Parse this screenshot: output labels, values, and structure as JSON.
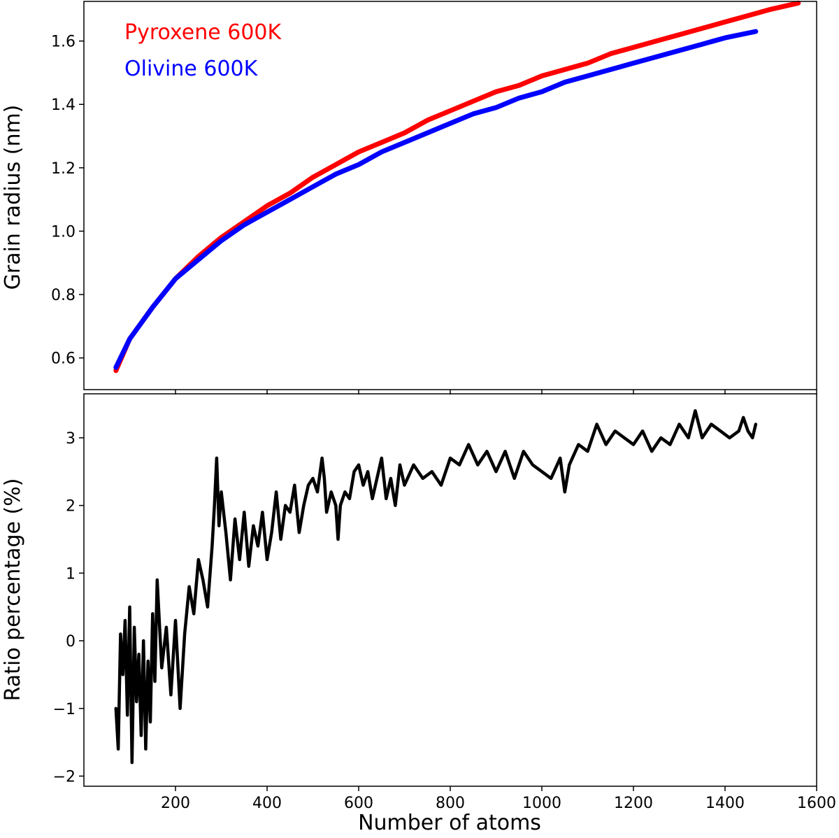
{
  "chart_data": [
    {
      "type": "line",
      "ylabel": "Grain radius (nm)",
      "xlabel": "",
      "xlim": [
        0,
        1600
      ],
      "ylim": [
        0.5,
        1.725
      ],
      "xticks": [
        200,
        400,
        600,
        800,
        1000,
        1200,
        1400,
        1600
      ],
      "yticks": [
        0.6,
        0.8,
        1.0,
        1.2,
        1.4,
        1.6
      ],
      "ytick_labels": [
        "0.6",
        "0.8",
        "1.0",
        "1.2",
        "1.4",
        "1.6"
      ],
      "show_xtick_labels": false,
      "legend": "top-left",
      "series": [
        {
          "name": "Pyroxene 600K",
          "color": "#ff0000",
          "x": [
            70,
            100,
            150,
            200,
            250,
            300,
            350,
            400,
            450,
            500,
            550,
            600,
            650,
            700,
            750,
            800,
            850,
            900,
            950,
            1000,
            1050,
            1100,
            1150,
            1200,
            1250,
            1300,
            1350,
            1400,
            1450,
            1500,
            1560
          ],
          "y": [
            0.56,
            0.66,
            0.76,
            0.85,
            0.92,
            0.98,
            1.03,
            1.08,
            1.12,
            1.17,
            1.21,
            1.25,
            1.28,
            1.31,
            1.35,
            1.38,
            1.41,
            1.44,
            1.46,
            1.49,
            1.51,
            1.53,
            1.56,
            1.58,
            1.6,
            1.62,
            1.64,
            1.66,
            1.68,
            1.7,
            1.72
          ]
        },
        {
          "name": "Olivine 600K",
          "color": "#0000ff",
          "x": [
            70,
            100,
            150,
            200,
            250,
            300,
            350,
            400,
            450,
            500,
            550,
            600,
            650,
            700,
            750,
            800,
            850,
            900,
            950,
            1000,
            1050,
            1100,
            1150,
            1200,
            1250,
            1300,
            1350,
            1400,
            1467
          ],
          "y": [
            0.57,
            0.66,
            0.76,
            0.85,
            0.91,
            0.97,
            1.02,
            1.06,
            1.1,
            1.14,
            1.18,
            1.21,
            1.25,
            1.28,
            1.31,
            1.34,
            1.37,
            1.39,
            1.42,
            1.44,
            1.47,
            1.49,
            1.51,
            1.53,
            1.55,
            1.57,
            1.59,
            1.61,
            1.63
          ]
        }
      ]
    },
    {
      "type": "line",
      "ylabel": "Ratio percentage (%)",
      "xlabel": "Number of atoms",
      "xlim": [
        0,
        1600
      ],
      "ylim": [
        -2.15,
        3.65
      ],
      "xticks": [
        200,
        400,
        600,
        800,
        1000,
        1200,
        1400,
        1600
      ],
      "xtick_labels": [
        "200",
        "400",
        "600",
        "800",
        "1000",
        "1200",
        "1400",
        "1600"
      ],
      "yticks": [
        -2,
        -1,
        0,
        1,
        2,
        3
      ],
      "ytick_labels": [
        "−2",
        "−1",
        "0",
        "1",
        "2",
        "3"
      ],
      "show_xtick_labels": true,
      "series": [
        {
          "color": "#000000",
          "x": [
            70,
            75,
            80,
            85,
            90,
            95,
            100,
            105,
            110,
            115,
            120,
            125,
            130,
            135,
            140,
            145,
            150,
            155,
            160,
            170,
            180,
            190,
            200,
            210,
            220,
            230,
            240,
            250,
            260,
            270,
            280,
            285,
            290,
            295,
            300,
            310,
            320,
            330,
            340,
            350,
            360,
            370,
            380,
            390,
            400,
            410,
            420,
            430,
            440,
            450,
            460,
            470,
            480,
            490,
            500,
            510,
            520,
            525,
            530,
            540,
            550,
            555,
            560,
            570,
            580,
            590,
            600,
            610,
            620,
            630,
            640,
            650,
            660,
            670,
            680,
            690,
            700,
            720,
            740,
            760,
            780,
            800,
            820,
            840,
            860,
            880,
            900,
            920,
            940,
            960,
            980,
            1000,
            1020,
            1040,
            1050,
            1060,
            1080,
            1100,
            1120,
            1140,
            1160,
            1180,
            1200,
            1220,
            1240,
            1260,
            1280,
            1300,
            1320,
            1335,
            1350,
            1370,
            1390,
            1410,
            1430,
            1440,
            1450,
            1460,
            1467
          ],
          "y": [
            -1.0,
            -1.6,
            0.1,
            -0.5,
            0.3,
            -1.1,
            0.5,
            -1.8,
            0.2,
            -0.9,
            -0.2,
            -1.4,
            0.0,
            -1.6,
            -0.3,
            -1.2,
            0.4,
            -0.6,
            0.9,
            -0.4,
            0.2,
            -0.8,
            0.3,
            -1.0,
            0.1,
            0.8,
            0.4,
            1.2,
            0.9,
            0.5,
            1.4,
            2.0,
            2.7,
            1.7,
            2.2,
            1.6,
            0.9,
            1.8,
            1.2,
            1.9,
            1.1,
            1.7,
            1.4,
            1.9,
            1.2,
            1.6,
            2.2,
            1.5,
            2.0,
            1.9,
            2.3,
            1.6,
            2.0,
            2.3,
            2.4,
            2.2,
            2.7,
            2.4,
            1.9,
            2.2,
            2.0,
            1.5,
            2.0,
            2.2,
            2.1,
            2.5,
            2.6,
            2.3,
            2.5,
            2.1,
            2.4,
            2.7,
            2.1,
            2.4,
            2.0,
            2.6,
            2.3,
            2.6,
            2.4,
            2.5,
            2.3,
            2.7,
            2.6,
            2.9,
            2.6,
            2.8,
            2.5,
            2.8,
            2.4,
            2.8,
            2.6,
            2.5,
            2.4,
            2.7,
            2.2,
            2.6,
            2.9,
            2.8,
            3.2,
            2.9,
            3.1,
            3.0,
            2.9,
            3.1,
            2.8,
            3.0,
            2.9,
            3.2,
            3.0,
            3.4,
            3.0,
            3.2,
            3.1,
            3.0,
            3.1,
            3.3,
            3.1,
            3.0,
            3.2
          ]
        }
      ]
    }
  ]
}
